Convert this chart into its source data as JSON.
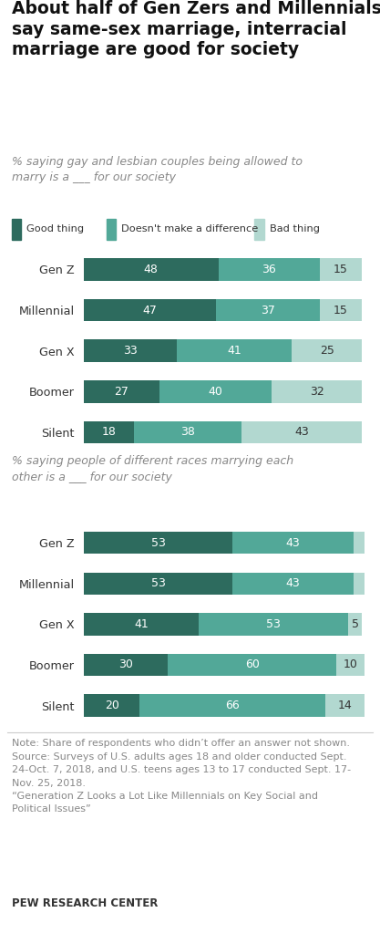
{
  "title_line1": "About half of Gen Zers and Millennials",
  "title_line2": "say same-sex marriage, interracial",
  "title_line3": "marriage are good for society",
  "subtitle1": "% saying gay and lesbian couples being allowed to\nmarry is a ___ for our society",
  "subtitle2": "% saying people of different races marrying each\nother is a ___ for our society",
  "legend_labels": [
    "Good thing",
    "Doesn't make a difference",
    "Bad thing"
  ],
  "colors": [
    "#2d6b5e",
    "#52a898",
    "#b2d8d0"
  ],
  "generations": [
    "Gen Z",
    "Millennial",
    "Gen X",
    "Boomer",
    "Silent"
  ],
  "chart1_data": [
    [
      48,
      36,
      15
    ],
    [
      47,
      37,
      15
    ],
    [
      33,
      41,
      25
    ],
    [
      27,
      40,
      32
    ],
    [
      18,
      38,
      43
    ]
  ],
  "chart2_data": [
    [
      53,
      43,
      4
    ],
    [
      53,
      43,
      4
    ],
    [
      41,
      53,
      5
    ],
    [
      30,
      60,
      10
    ],
    [
      20,
      66,
      14
    ]
  ],
  "note": "Note: Share of respondents who didn’t offer an answer not shown.\nSource: Surveys of U.S. adults ages 18 and older conducted Sept.\n24-Oct. 7, 2018, and U.S. teens ages 13 to 17 conducted Sept. 17-\nNov. 25, 2018.\n“Generation Z Looks a Lot Like Millennials on Key Social and\nPolitical Issues”",
  "source": "PEW RESEARCH CENTER",
  "bg_color": "#ffffff",
  "text_color": "#333333",
  "note_color": "#888888"
}
